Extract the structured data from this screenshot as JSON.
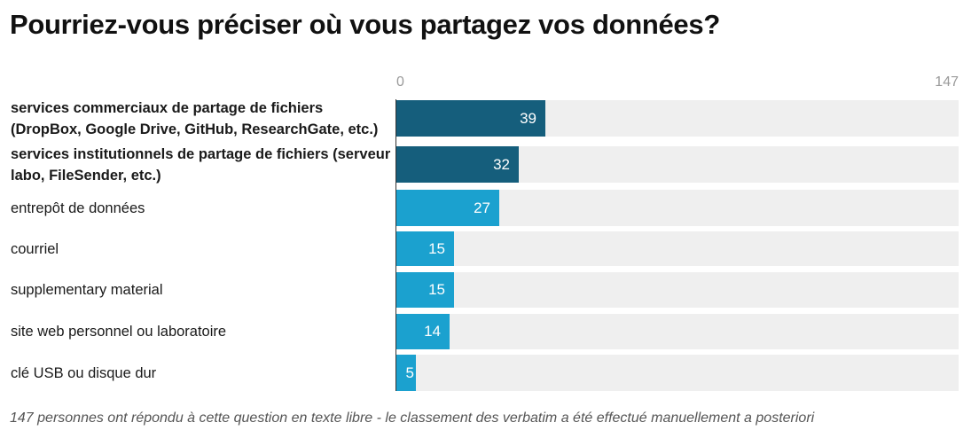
{
  "title": "Pourriez-vous préciser où vous partagez vos données?",
  "footnote": "147 personnes ont répondu à cette question en texte libre - le classement des verbatim a été effectué manuellement a posteriori",
  "colors": {
    "highlight": "#155e7c",
    "normal": "#1ba1cf",
    "track": "#efefef"
  },
  "chart_data": {
    "type": "bar",
    "orientation": "horizontal",
    "title": "Pourriez-vous préciser où vous partagez vos données?",
    "xlim": [
      0,
      147
    ],
    "axis_ticks": [
      "0",
      "147"
    ],
    "categories": [
      "services commerciaux de partage de fichiers (DropBox, Google Drive, GitHub, ResearchGate, etc.)",
      "services institutionnels de partage de fichiers (serveur labo, FileSender, etc.)",
      "entrepôt de données",
      "courriel",
      "supplementary material",
      "site web personnel ou laboratoire",
      "clé USB ou disque dur"
    ],
    "values": [
      39,
      32,
      27,
      15,
      15,
      14,
      5
    ],
    "highlighted": [
      true,
      true,
      false,
      false,
      false,
      false,
      false
    ],
    "grid": false
  }
}
